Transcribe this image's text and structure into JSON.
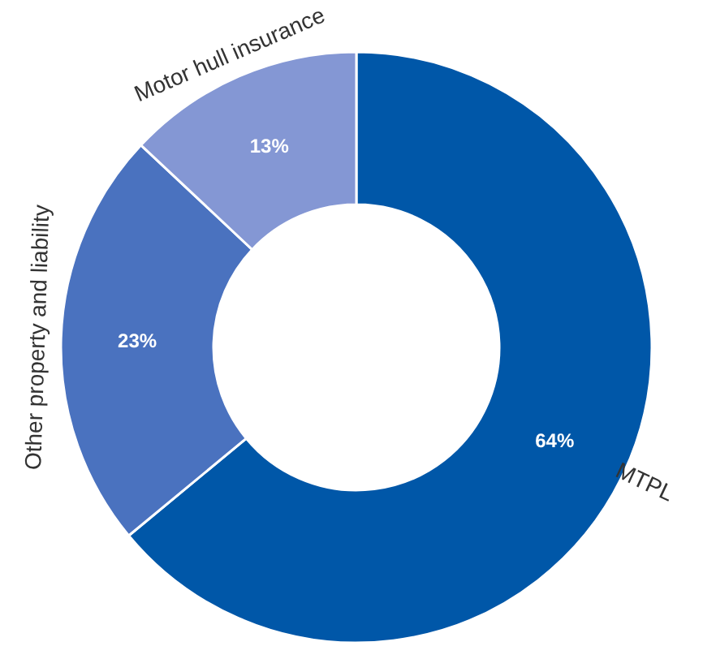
{
  "chart_data": {
    "type": "donut",
    "categories": [
      "MTPL",
      "Other property and liability",
      "Motor hull insurance"
    ],
    "values": [
      64,
      23,
      13
    ],
    "colors": [
      "#0057a8",
      "#4a72bf",
      "#8497d4"
    ],
    "value_labels": [
      "64%",
      "23%",
      "13%"
    ]
  }
}
